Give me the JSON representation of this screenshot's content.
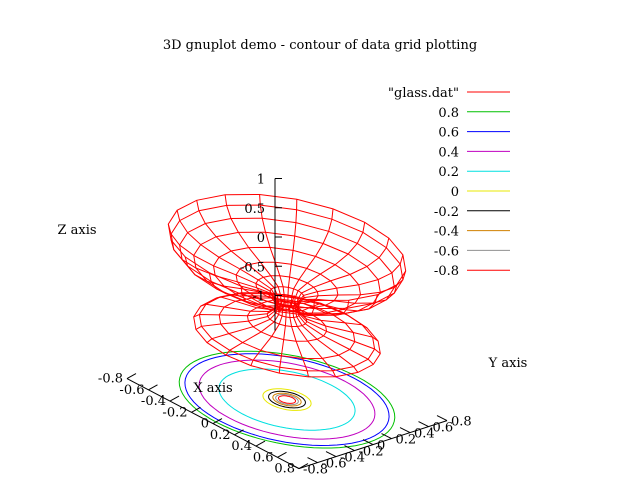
{
  "chart_data": {
    "type": "surface-3d",
    "title": "3D gnuplot demo - contour of data grid plotting",
    "xlabel": "X axis",
    "ylabel": "Y axis",
    "zlabel": "Z axis",
    "xlim": [
      -0.8,
      0.8
    ],
    "ylim": [
      -0.8,
      0.8
    ],
    "zlim": [
      -1,
      1
    ],
    "x_ticks": [
      "-0.8",
      "-0.6",
      "-0.4",
      "-0.2",
      "0",
      "0.2",
      "0.4",
      "0.6",
      "0.8"
    ],
    "y_ticks": [
      "-0.8",
      "-0.6",
      "-0.4",
      "-0.2",
      "0",
      "0.2",
      "0.4",
      "0.6",
      "0.8"
    ],
    "z_ticks": [
      "1",
      "0.5",
      "0",
      "-0.5",
      "-1"
    ],
    "legend_position": "top-right",
    "surface": {
      "name": "\"glass.dat\"",
      "color": "#ff0000"
    },
    "contours": [
      {
        "level": "0.8",
        "color": "#00c000",
        "radius": 0.76
      },
      {
        "level": "0.6",
        "color": "#0000ff",
        "radius": 0.72
      },
      {
        "level": "0.4",
        "color": "#c000c0",
        "radius": 0.62
      },
      {
        "level": "0.2",
        "color": "#00e0e0",
        "radius": 0.48
      },
      {
        "level": "0",
        "color": "#e8e800",
        "radius": 0.17
      },
      {
        "level": "-0.2",
        "color": "#000000",
        "radius": 0.13
      },
      {
        "level": "-0.4",
        "color": "#d08000",
        "radius": 0.1
      },
      {
        "level": "-0.6",
        "color": "#909090",
        "radius": 0.08
      },
      {
        "level": "-0.8",
        "color": "#ff0000",
        "radius": 0.06
      }
    ]
  }
}
